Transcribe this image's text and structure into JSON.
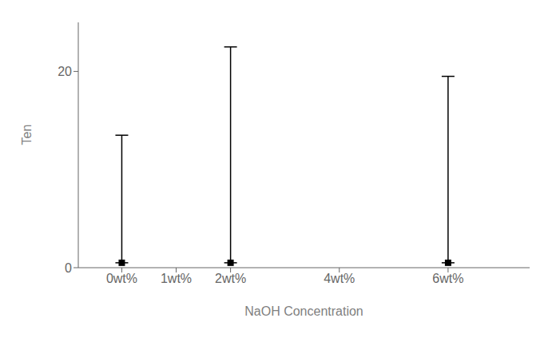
{
  "chart_data": {
    "type": "scatter",
    "x": [
      0,
      2,
      6
    ],
    "values": [
      0.5,
      0.5,
      0.5
    ],
    "error_low": [
      0.0,
      0.0,
      0.0
    ],
    "error_high": [
      13.0,
      22.0,
      19.0
    ],
    "color": "#000000",
    "marker": "square",
    "xlabel": "NaOH Concentration",
    "ylabel": "Ten",
    "xlim": [
      -0.8,
      7.5
    ],
    "ylim": [
      0,
      25
    ],
    "xticks": [
      {
        "value": 0,
        "label": "0wt%"
      },
      {
        "value": 1,
        "label": "1wt%"
      },
      {
        "value": 2,
        "label": "2wt%"
      },
      {
        "value": 4,
        "label": "4wt%"
      },
      {
        "value": 6,
        "label": "6wt%"
      }
    ],
    "yticks": [
      0,
      20
    ],
    "grid": false
  }
}
